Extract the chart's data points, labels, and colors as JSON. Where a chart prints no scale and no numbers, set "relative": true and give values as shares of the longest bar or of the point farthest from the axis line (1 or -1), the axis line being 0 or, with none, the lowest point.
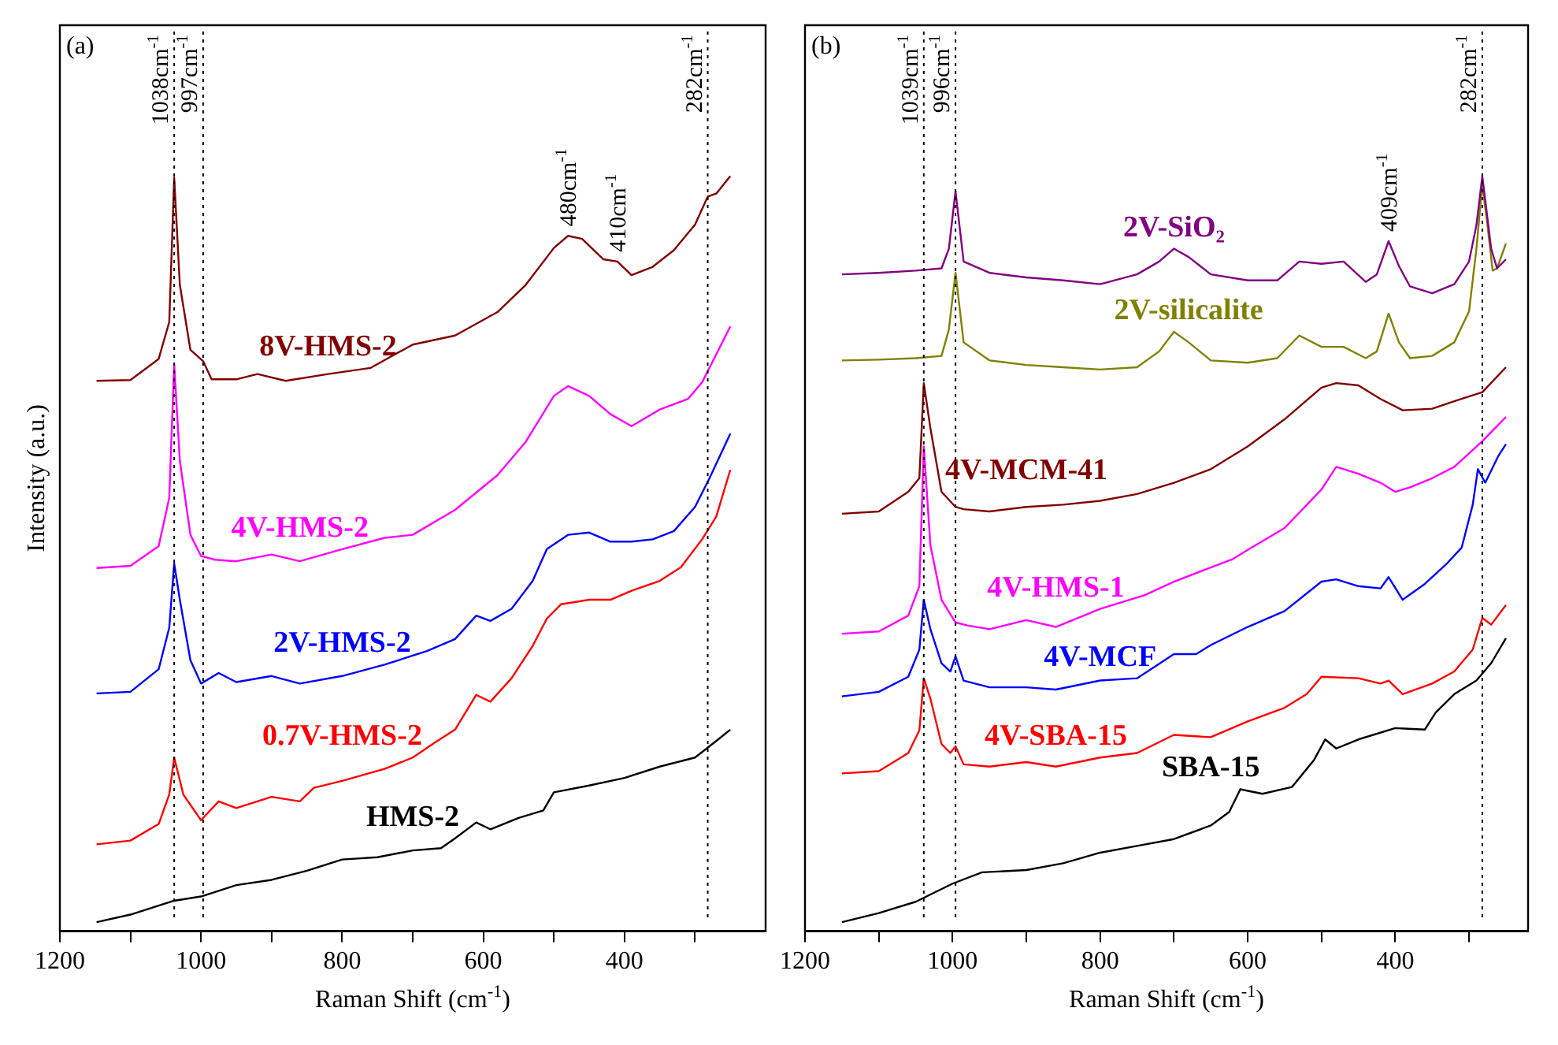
{
  "chart_data": [
    {
      "type": "line",
      "title": "(a)",
      "xlabel": "Raman Shift (cm$^{-1}$)",
      "ylabel": "Intensity (a.u.)",
      "relative": true,
      "xlim": [
        1200,
        200
      ],
      "xticks": [
        1200,
        {
          "value": 1100,
          "label": null
        },
        1000,
        {
          "value": 900,
          "label": null
        },
        800,
        {
          "value": 700,
          "label": null
        },
        600,
        {
          "value": 500,
          "label": null
        },
        400,
        {
          "value": 300,
          "label": null
        }
      ],
      "line_style": "solid",
      "marker": "none",
      "legend": false,
      "ref_lines": [
        {
          "axis": "x",
          "value": 1038,
          "label": "1038cm$^{-1}$",
          "line_style": "dotted",
          "color": "#000000"
        },
        {
          "axis": "x",
          "value": 997,
          "label": "997cm$^{-1}$",
          "line_style": "dotted",
          "color": "#000000"
        },
        {
          "axis": "x",
          "value": 282,
          "label": "282cm$^{-1}$",
          "line_style": "dotted",
          "color": "#000000"
        }
      ],
      "annotations": [
        {
          "text": "480cm$^{-1}$",
          "x": 480,
          "y": 0.921
        },
        {
          "text": "410cm$^{-1}$",
          "x": 410,
          "y": 0.887
        }
      ],
      "series": [
        {
          "name": "8V-HMS-2",
          "color": "#800000",
          "x": [
            1148,
            1100,
            1060,
            1045,
            1038,
            1030,
            1015,
            997,
            985,
            950,
            920,
            880,
            820,
            760,
            700,
            640,
            580,
            540,
            500,
            480,
            460,
            430,
            410,
            390,
            360,
            330,
            300,
            282,
            270,
            250
          ],
          "values": [
            0.729,
            0.73,
            0.758,
            0.807,
            0.998,
            0.856,
            0.77,
            0.755,
            0.731,
            0.731,
            0.738,
            0.729,
            0.738,
            0.746,
            0.777,
            0.789,
            0.82,
            0.856,
            0.905,
            0.921,
            0.917,
            0.89,
            0.887,
            0.869,
            0.88,
            0.902,
            0.936,
            0.973,
            0.977,
            1.0
          ]
        },
        {
          "name": "4V-HMS-2",
          "color": "#ff00ff",
          "x": [
            1148,
            1100,
            1060,
            1045,
            1038,
            1030,
            1015,
            1000,
            980,
            950,
            900,
            860,
            800,
            740,
            700,
            640,
            580,
            540,
            500,
            480,
            450,
            420,
            390,
            350,
            310,
            290,
            270,
            250
          ],
          "values": [
            0.481,
            0.484,
            0.51,
            0.574,
            0.751,
            0.623,
            0.525,
            0.497,
            0.492,
            0.49,
            0.499,
            0.49,
            0.506,
            0.521,
            0.525,
            0.558,
            0.604,
            0.648,
            0.709,
            0.722,
            0.709,
            0.685,
            0.669,
            0.691,
            0.705,
            0.727,
            0.764,
            0.801
          ]
        },
        {
          "name": "2V-HMS-2",
          "color": "#0000ff",
          "x": [
            1148,
            1100,
            1060,
            1045,
            1038,
            1030,
            1015,
            1000,
            975,
            950,
            900,
            860,
            800,
            740,
            680,
            640,
            610,
            590,
            560,
            530,
            510,
            480,
            450,
            420,
            390,
            360,
            330,
            300,
            280,
            250
          ],
          "values": [
            0.315,
            0.317,
            0.347,
            0.402,
            0.487,
            0.439,
            0.359,
            0.328,
            0.342,
            0.33,
            0.338,
            0.328,
            0.338,
            0.353,
            0.371,
            0.387,
            0.418,
            0.411,
            0.427,
            0.464,
            0.506,
            0.525,
            0.528,
            0.516,
            0.516,
            0.519,
            0.53,
            0.562,
            0.599,
            0.659
          ]
        },
        {
          "name": "0.7V-HMS-2",
          "color": "#ff0000",
          "x": [
            1148,
            1100,
            1060,
            1045,
            1038,
            1025,
            1000,
            975,
            950,
            900,
            860,
            840,
            800,
            740,
            700,
            670,
            640,
            610,
            590,
            560,
            530,
            510,
            490,
            450,
            420,
            390,
            350,
            320,
            290,
            270,
            250
          ],
          "values": [
            0.115,
            0.12,
            0.142,
            0.181,
            0.23,
            0.181,
            0.147,
            0.172,
            0.163,
            0.178,
            0.172,
            0.19,
            0.199,
            0.215,
            0.23,
            0.249,
            0.267,
            0.313,
            0.304,
            0.335,
            0.378,
            0.414,
            0.433,
            0.439,
            0.439,
            0.451,
            0.464,
            0.482,
            0.519,
            0.549,
            0.611
          ]
        },
        {
          "name": "HMS-2",
          "color": "#000000",
          "x": [
            1148,
            1100,
            1040,
            1000,
            950,
            900,
            850,
            800,
            750,
            700,
            660,
            640,
            610,
            590,
            550,
            515,
            500,
            450,
            400,
            350,
            300,
            270,
            250
          ],
          "values": [
            0.012,
            0.022,
            0.04,
            0.046,
            0.061,
            0.068,
            0.08,
            0.095,
            0.098,
            0.107,
            0.11,
            0.123,
            0.144,
            0.135,
            0.15,
            0.16,
            0.184,
            0.193,
            0.203,
            0.218,
            0.23,
            0.252,
            0.267
          ]
        }
      ]
    },
    {
      "type": "line",
      "title": "(b)",
      "xlabel": "Raman Shift (cm$^{-1}$)",
      "relative": true,
      "xlim": [
        1200,
        220
      ],
      "xticks": [
        1200,
        {
          "value": 1100,
          "label": null
        },
        1000,
        {
          "value": 900,
          "label": null
        },
        800,
        {
          "value": 700,
          "label": null
        },
        600,
        {
          "value": 500,
          "label": null
        },
        400,
        {
          "value": 300,
          "label": null
        }
      ],
      "line_style": "solid",
      "marker": "none",
      "legend": false,
      "ref_lines": [
        {
          "axis": "x",
          "value": 1039,
          "label": "1039cm$^{-1}$",
          "line_style": "dotted",
          "color": "#000000"
        },
        {
          "axis": "x",
          "value": 996,
          "label": "996cm$^{-1}$",
          "line_style": "dotted",
          "color": "#000000"
        },
        {
          "axis": "x",
          "value": 282,
          "label": "282cm$^{-1}$",
          "line_style": "dotted",
          "color": "#000000"
        }
      ],
      "annotations": [
        {
          "text": "409cm$^{-1}$",
          "x": 409,
          "y": 0.914
        }
      ],
      "series": [
        {
          "name": "2V-SiO₂",
          "color": "#800080",
          "x": [
            1150,
            1100,
            1050,
            1015,
            1005,
            996,
            985,
            950,
            900,
            850,
            800,
            750,
            720,
            700,
            680,
            650,
            600,
            560,
            530,
            500,
            470,
            440,
            425,
            409,
            395,
            380,
            350,
            320,
            300,
            290,
            282,
            270,
            262,
            250
          ],
          "values": [
            0.87,
            0.872,
            0.875,
            0.878,
            0.904,
            0.98,
            0.887,
            0.872,
            0.866,
            0.862,
            0.857,
            0.87,
            0.887,
            0.904,
            0.893,
            0.87,
            0.862,
            0.862,
            0.887,
            0.884,
            0.887,
            0.86,
            0.87,
            0.914,
            0.881,
            0.854,
            0.845,
            0.857,
            0.887,
            0.935,
            1.0,
            0.904,
            0.878,
            0.89
          ]
        },
        {
          "name": "2V-silicalite",
          "color": "#808000",
          "x": [
            1150,
            1100,
            1050,
            1015,
            1005,
            996,
            985,
            950,
            900,
            850,
            800,
            750,
            720,
            700,
            680,
            650,
            600,
            560,
            530,
            500,
            470,
            440,
            425,
            409,
            395,
            380,
            350,
            320,
            300,
            290,
            282,
            275,
            268,
            262,
            250
          ],
          "values": [
            0.756,
            0.757,
            0.759,
            0.762,
            0.797,
            0.872,
            0.78,
            0.756,
            0.75,
            0.747,
            0.744,
            0.747,
            0.768,
            0.794,
            0.78,
            0.756,
            0.753,
            0.759,
            0.789,
            0.774,
            0.774,
            0.759,
            0.768,
            0.818,
            0.78,
            0.759,
            0.762,
            0.78,
            0.821,
            0.904,
            0.989,
            0.935,
            0.875,
            0.878,
            0.911
          ]
        },
        {
          "name": "4V-MCM-41",
          "color": "#800000",
          "x": [
            1150,
            1100,
            1060,
            1045,
            1039,
            1030,
            1015,
            996,
            985,
            950,
            900,
            850,
            800,
            750,
            700,
            650,
            600,
            550,
            500,
            480,
            450,
            420,
            390,
            350,
            320,
            282,
            250
          ],
          "values": [
            0.553,
            0.556,
            0.582,
            0.6,
            0.726,
            0.666,
            0.582,
            0.562,
            0.559,
            0.556,
            0.562,
            0.565,
            0.57,
            0.579,
            0.594,
            0.612,
            0.642,
            0.678,
            0.72,
            0.726,
            0.723,
            0.705,
            0.69,
            0.692,
            0.702,
            0.714,
            0.747
          ]
        },
        {
          "name": "4V-HMS-1",
          "color": "#ff00ff",
          "x": [
            1150,
            1100,
            1060,
            1045,
            1039,
            1030,
            1015,
            996,
            980,
            950,
            900,
            860,
            800,
            740,
            700,
            660,
            620,
            600,
            550,
            500,
            480,
            450,
            420,
            400,
            380,
            350,
            320,
            282,
            250
          ],
          "values": [
            0.394,
            0.397,
            0.418,
            0.457,
            0.642,
            0.511,
            0.439,
            0.409,
            0.405,
            0.4,
            0.412,
            0.403,
            0.427,
            0.445,
            0.463,
            0.478,
            0.493,
            0.505,
            0.534,
            0.585,
            0.615,
            0.606,
            0.594,
            0.582,
            0.588,
            0.6,
            0.615,
            0.649,
            0.681
          ]
        },
        {
          "name": "4V-MCF",
          "color": "#0000ff",
          "x": [
            1150,
            1100,
            1060,
            1045,
            1039,
            1030,
            1015,
            1003,
            996,
            985,
            950,
            900,
            860,
            800,
            750,
            700,
            670,
            650,
            600,
            550,
            500,
            480,
            450,
            420,
            409,
            390,
            360,
            330,
            310,
            295,
            288,
            278,
            260,
            250
          ],
          "values": [
            0.311,
            0.317,
            0.337,
            0.373,
            0.439,
            0.4,
            0.355,
            0.344,
            0.364,
            0.332,
            0.323,
            0.323,
            0.32,
            0.332,
            0.335,
            0.367,
            0.367,
            0.379,
            0.403,
            0.424,
            0.463,
            0.466,
            0.457,
            0.454,
            0.469,
            0.439,
            0.46,
            0.487,
            0.508,
            0.565,
            0.612,
            0.594,
            0.63,
            0.645
          ]
        },
        {
          "name": "4V-SBA-15",
          "color": "#ff0000",
          "x": [
            1150,
            1100,
            1060,
            1045,
            1039,
            1030,
            1015,
            1003,
            996,
            985,
            950,
            900,
            860,
            800,
            750,
            700,
            650,
            600,
            550,
            520,
            500,
            450,
            420,
            409,
            390,
            350,
            320,
            295,
            282,
            270,
            250
          ],
          "values": [
            0.209,
            0.212,
            0.236,
            0.266,
            0.335,
            0.308,
            0.248,
            0.236,
            0.245,
            0.221,
            0.218,
            0.224,
            0.218,
            0.23,
            0.236,
            0.26,
            0.257,
            0.278,
            0.296,
            0.314,
            0.337,
            0.335,
            0.328,
            0.332,
            0.314,
            0.328,
            0.344,
            0.373,
            0.415,
            0.406,
            0.432
          ]
        },
        {
          "name": "SBA-15",
          "color": "#000000",
          "x": [
            1150,
            1100,
            1050,
            1000,
            960,
            900,
            850,
            800,
            750,
            700,
            650,
            625,
            610,
            580,
            540,
            510,
            495,
            480,
            450,
            400,
            360,
            345,
            320,
            290,
            270,
            250
          ],
          "values": [
            0.012,
            0.024,
            0.039,
            0.063,
            0.078,
            0.081,
            0.09,
            0.104,
            0.113,
            0.122,
            0.14,
            0.158,
            0.188,
            0.182,
            0.191,
            0.227,
            0.254,
            0.242,
            0.254,
            0.269,
            0.267,
            0.29,
            0.314,
            0.332,
            0.355,
            0.388
          ]
        }
      ]
    }
  ]
}
